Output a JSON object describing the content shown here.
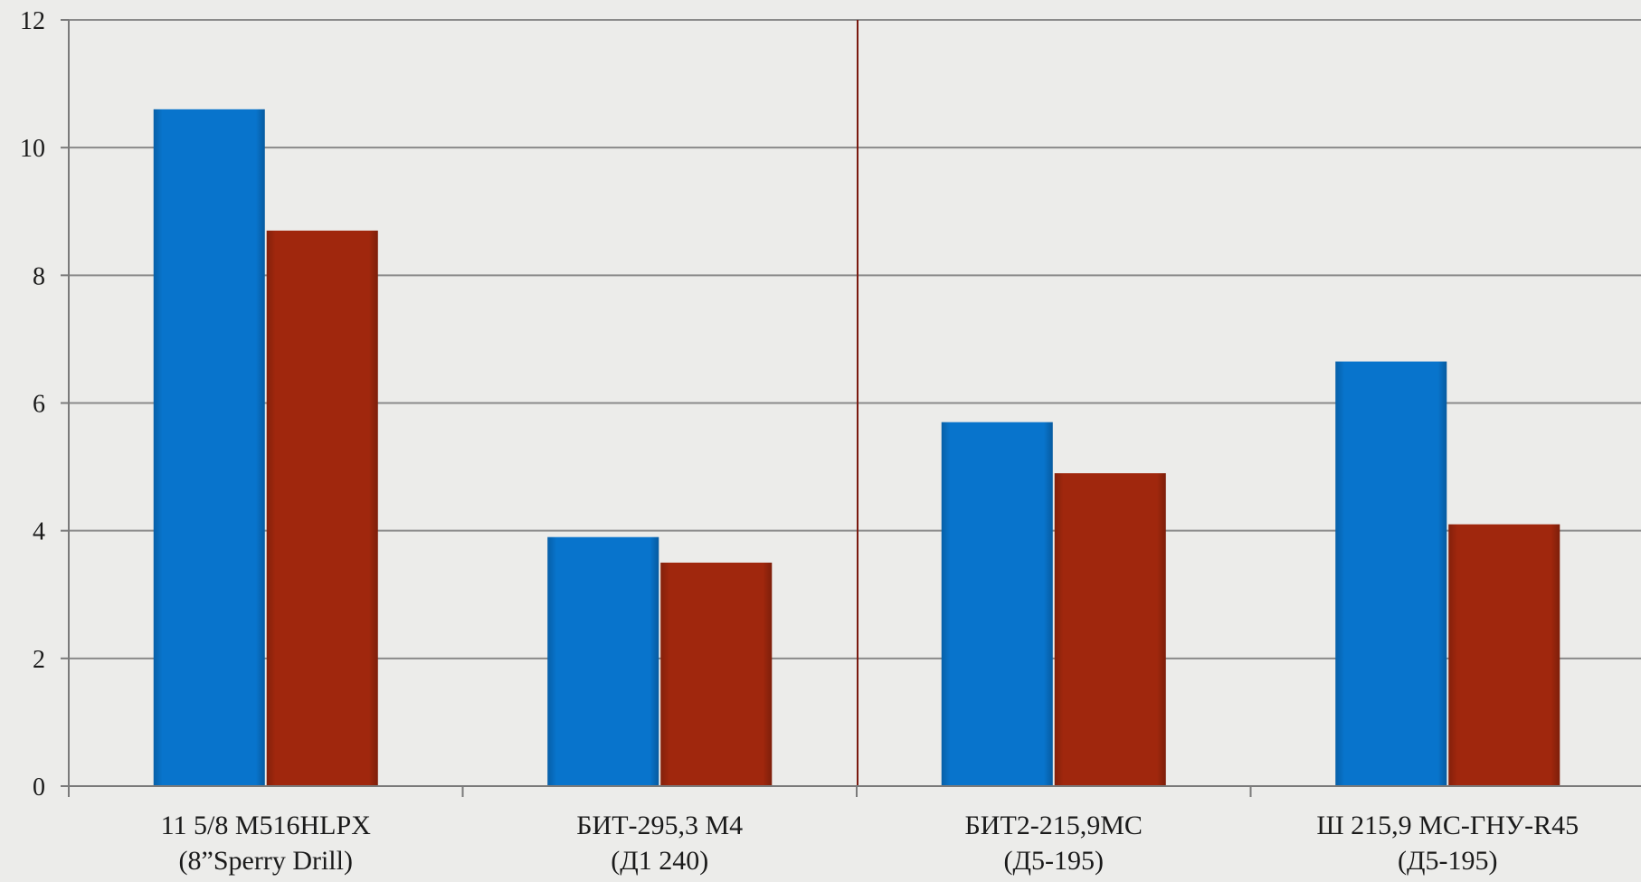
{
  "chart_data": {
    "type": "bar",
    "categories": [
      [
        "11 5/8 M516HLPX",
        "(8”Sperry Drill)"
      ],
      [
        "БИТ-295,3 М4",
        "(Д1 240)"
      ],
      [
        "БИТ2-215,9МС",
        "(Д5-195)"
      ],
      [
        "Ш 215,9 МС-ГНУ-R45",
        "(Д5-195)"
      ]
    ],
    "series": [
      {
        "values": [
          10.6,
          3.9,
          5.7,
          6.65
        ],
        "color": "#0874cc"
      },
      {
        "values": [
          8.7,
          3.5,
          4.9,
          4.1
        ],
        "color": "#a0270d"
      }
    ],
    "title": "",
    "xlabel": "",
    "ylabel": "",
    "ylim": [
      0,
      12
    ],
    "yticks": [
      "0",
      "2",
      "4",
      "6",
      "8",
      "10",
      "12"
    ],
    "grid": true,
    "legend": "none",
    "separator_after_category": 2,
    "separator_color": "#7a1a10",
    "gridline_color": "#8a8a8a"
  }
}
